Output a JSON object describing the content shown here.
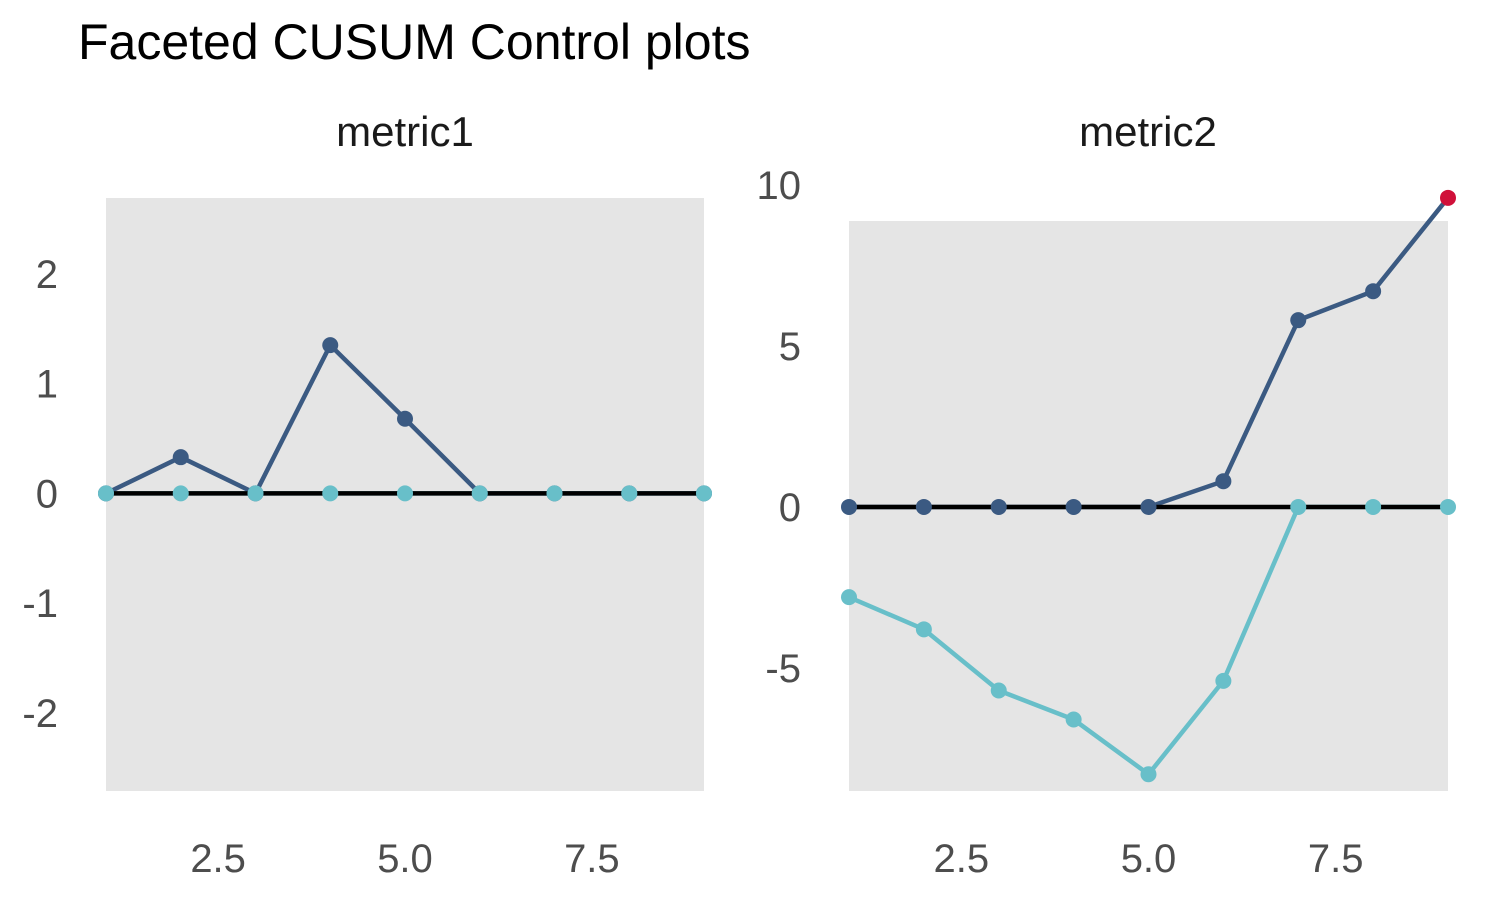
{
  "title": "Faceted CUSUM Control plots",
  "colors": {
    "upper_series": "#3b5a82",
    "lower_series": "#68bfc9",
    "signal": "#d0103a",
    "centerline": "#000000",
    "panel_background": "#e5e5e5",
    "figure_background": "#ffffff",
    "axis_text": "#4d4d4d",
    "facet_text": "#1a1a1a",
    "title_text": "#000000"
  },
  "chart_data": [
    {
      "type": "line",
      "facet": "metric1",
      "x": [
        1,
        2,
        3,
        4,
        5,
        6,
        7,
        8,
        9
      ],
      "series": [
        {
          "name": "cusum-upper",
          "color": "#3b5a82",
          "values": [
            0,
            0.33,
            0,
            1.35,
            0.68,
            0,
            0,
            0,
            0
          ]
        },
        {
          "name": "cusum-lower",
          "color": "#68bfc9",
          "values": [
            0,
            0,
            0,
            0,
            0,
            0,
            0,
            0,
            0
          ]
        }
      ],
      "centerline": 0,
      "signals": [],
      "x_ticks": [
        {
          "value": 2.5,
          "label": "2.5"
        },
        {
          "value": 5.0,
          "label": "5.0"
        },
        {
          "value": 7.5,
          "label": "7.5"
        }
      ],
      "y_ticks": [
        {
          "value": 2,
          "label": "2"
        },
        {
          "value": 1,
          "label": "1"
        },
        {
          "value": 0,
          "label": "0"
        },
        {
          "value": -1,
          "label": "-1"
        },
        {
          "value": -2,
          "label": "-2"
        }
      ],
      "xlim": [
        1,
        9
      ],
      "ylim": [
        -2.71,
        2.69
      ],
      "grid": false,
      "legend": "none"
    },
    {
      "type": "line",
      "facet": "metric2",
      "x": [
        1,
        2,
        3,
        4,
        5,
        6,
        7,
        8,
        9
      ],
      "series": [
        {
          "name": "cusum-upper",
          "color": "#3b5a82",
          "values": [
            0,
            0,
            0,
            0,
            0,
            0.8,
            5.8,
            6.7,
            9.6
          ]
        },
        {
          "name": "cusum-lower",
          "color": "#68bfc9",
          "values": [
            -2.8,
            -3.8,
            -5.7,
            -6.6,
            -8.3,
            -5.4,
            0,
            0,
            0
          ]
        }
      ],
      "centerline": 0,
      "signals": [
        {
          "series": 0,
          "index": 8
        }
      ],
      "x_ticks": [
        {
          "value": 2.5,
          "label": "2.5"
        },
        {
          "value": 5.0,
          "label": "5.0"
        },
        {
          "value": 7.5,
          "label": "7.5"
        }
      ],
      "y_ticks": [
        {
          "value": 10,
          "label": "10"
        },
        {
          "value": 5,
          "label": "5"
        },
        {
          "value": 0,
          "label": "0"
        },
        {
          "value": -5,
          "label": "-5"
        }
      ],
      "xlim": [
        1,
        9
      ],
      "ylim": [
        -8.82,
        8.88
      ],
      "grid": false,
      "legend": "none"
    }
  ]
}
